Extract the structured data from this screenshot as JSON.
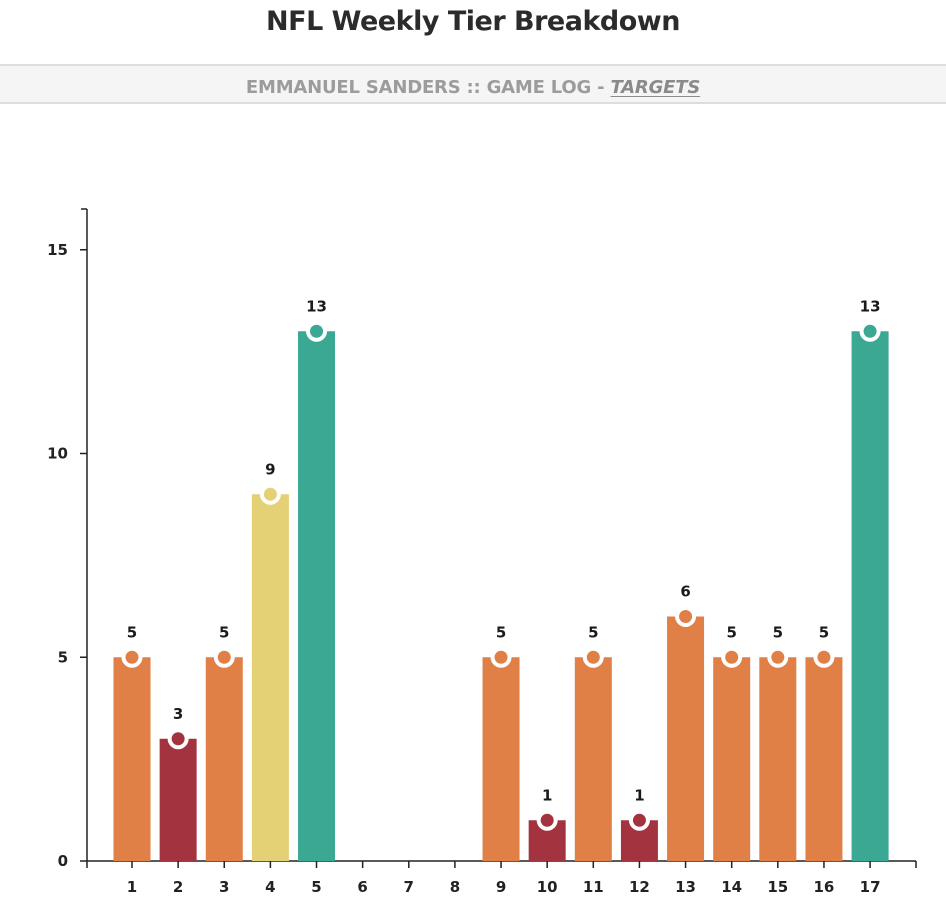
{
  "header": {
    "title": "NFL Weekly Tier Breakdown",
    "subtitle_prefix": "EMMANUEL SANDERS :: GAME LOG - ",
    "subtitle_metric": "TARGETS"
  },
  "colors": {
    "teal": "#3aa892",
    "yellow": "#e4d176",
    "orange": "#e07f46",
    "red": "#a2333f"
  },
  "chart_data": {
    "type": "bar",
    "title": "",
    "xlabel": "",
    "ylabel": "",
    "categories": [
      "1",
      "2",
      "3",
      "4",
      "5",
      "6",
      "7",
      "8",
      "9",
      "10",
      "11",
      "12",
      "13",
      "14",
      "15",
      "16",
      "17"
    ],
    "values": [
      5,
      3,
      5,
      9,
      13,
      null,
      null,
      null,
      5,
      1,
      5,
      1,
      6,
      5,
      5,
      5,
      13
    ],
    "bar_colors": [
      "orange",
      "red",
      "orange",
      "yellow",
      "teal",
      null,
      null,
      null,
      "orange",
      "red",
      "orange",
      "red",
      "orange",
      "orange",
      "orange",
      "orange",
      "teal"
    ],
    "ylim": [
      0,
      16
    ],
    "yticks": [
      0,
      5,
      10,
      15
    ],
    "grid": false,
    "data_labels": true
  }
}
